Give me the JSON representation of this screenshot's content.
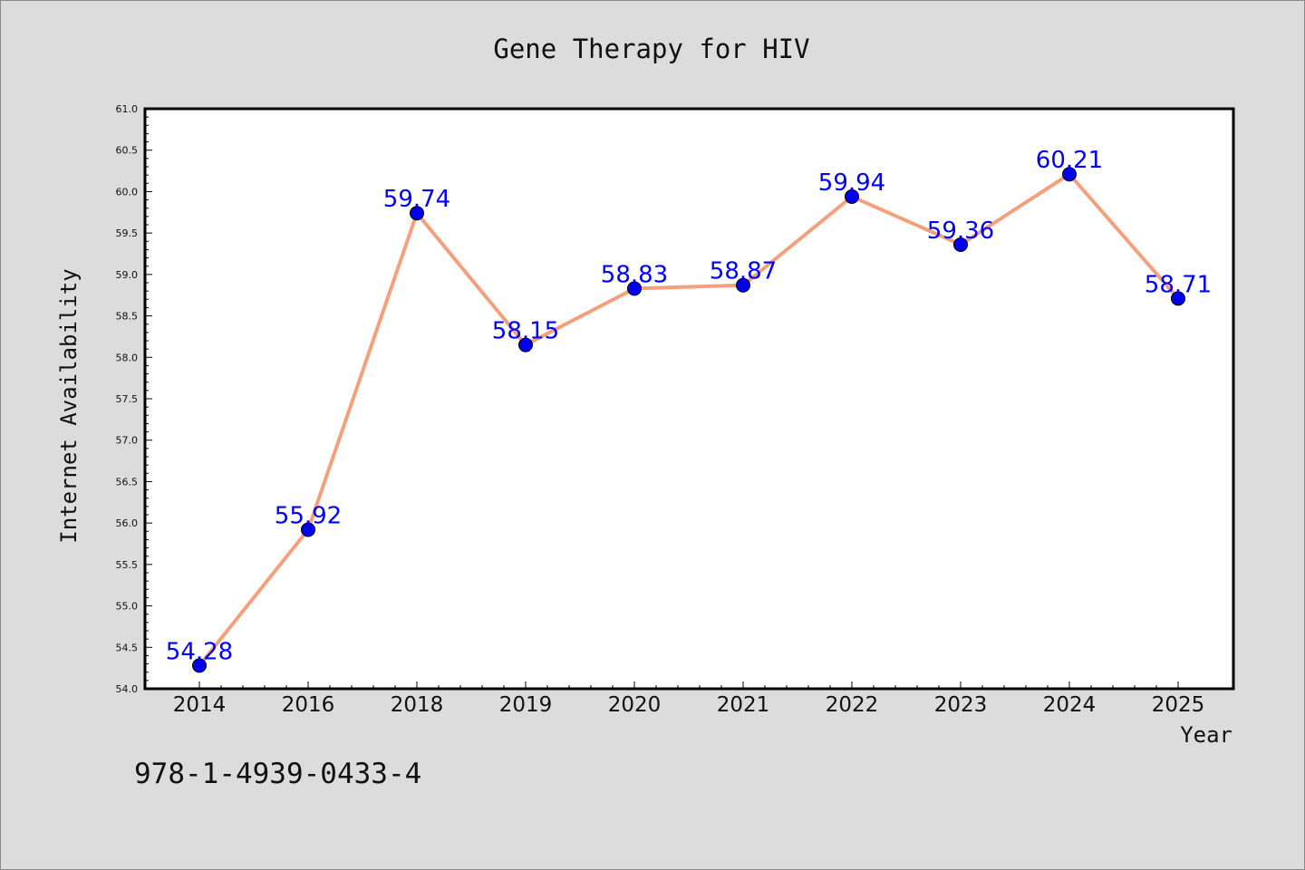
{
  "chart_data": {
    "type": "line",
    "title": "Gene Therapy for HIV",
    "xlabel": "Year",
    "ylabel": "Internet Availability",
    "categories": [
      "2014",
      "2016",
      "2018",
      "2019",
      "2020",
      "2021",
      "2022",
      "2023",
      "2024",
      "2025"
    ],
    "series": [
      {
        "values": [
          54.28,
          55.92,
          59.74,
          58.15,
          58.83,
          58.87,
          59.94,
          59.36,
          60.21,
          58.71
        ],
        "data_labels": [
          "54.28",
          "55.92",
          "59.74",
          "58.15",
          "58.83",
          "58.87",
          "59.94",
          "59.36",
          "60.21",
          "58.71"
        ],
        "line_color": "#f4a07c",
        "marker_color": "#0000ee"
      }
    ],
    "ylim": [
      54.0,
      61.0
    ],
    "yticks": [
      "54.0",
      "54.5",
      "55.0",
      "55.5",
      "56.0",
      "56.5",
      "57.0",
      "57.5",
      "58.0",
      "58.5",
      "59.0",
      "59.5",
      "60.0",
      "60.5",
      "61.0"
    ],
    "grid": false,
    "legend": "none"
  },
  "footer": {
    "isbn": "978-1-4939-0433-4"
  },
  "colors": {
    "page_background": "#dcdcdc",
    "plot_background": "#ffffff",
    "data_label": "#0000ff"
  }
}
